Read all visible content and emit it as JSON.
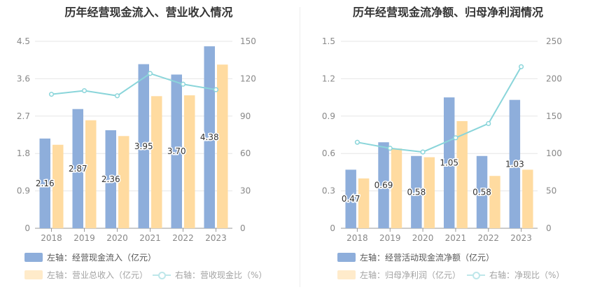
{
  "colors": {
    "bar_primary": "#8EAEDB",
    "bar_secondary": "#FFDBA0",
    "line": "#8AD5DA",
    "axis_text": "#888888",
    "grid": "#E6E6E6"
  },
  "chart_data": [
    {
      "type": "bar",
      "title": "历年经营现金流入、营业收入情况",
      "categories": [
        "2018",
        "2019",
        "2020",
        "2021",
        "2022",
        "2023"
      ],
      "left_axis": {
        "ticks": [
          "0",
          "0.9",
          "1.8",
          "2.7",
          "3.6",
          "4.5"
        ],
        "ylim": [
          0,
          4.5
        ]
      },
      "right_axis": {
        "ticks": [
          "0",
          "30",
          "60",
          "90",
          "120",
          "150"
        ],
        "ylim": [
          0,
          150
        ]
      },
      "series": [
        {
          "name": "左轴：经营现金流入（亿元）",
          "kind": "bar",
          "axis": "left",
          "values": [
            2.16,
            2.87,
            2.36,
            3.95,
            3.7,
            4.38
          ],
          "labels": [
            "2.16",
            "2.87",
            "2.36",
            "3.95",
            "3.70",
            "4.38"
          ]
        },
        {
          "name": "左轴：营业总收入（亿元）",
          "kind": "bar",
          "axis": "left",
          "values": [
            2.01,
            2.6,
            2.22,
            3.18,
            3.2,
            3.94
          ]
        },
        {
          "name": "右轴：营收现金比（%）",
          "kind": "line",
          "axis": "right",
          "values": [
            107.5,
            110.4,
            106.3,
            124.2,
            115.6,
            111.2
          ]
        }
      ]
    },
    {
      "type": "bar",
      "title": "历年经营现金流净额、归母净利润情况",
      "categories": [
        "2018",
        "2019",
        "2020",
        "2021",
        "2022",
        "2023"
      ],
      "left_axis": {
        "ticks": [
          "0",
          "0.3",
          "0.6",
          "0.9",
          "1.2",
          "1.5"
        ],
        "ylim": [
          0,
          1.5
        ]
      },
      "right_axis": {
        "ticks": [
          "0",
          "50",
          "100",
          "150",
          "200",
          "250"
        ],
        "ylim": [
          0,
          250
        ]
      },
      "series": [
        {
          "name": "左轴：经营活动现金流净额（亿元）",
          "kind": "bar",
          "axis": "left",
          "values": [
            0.47,
            0.69,
            0.58,
            1.05,
            0.58,
            1.03
          ],
          "labels": [
            "0.47",
            "0.69",
            "0.58",
            "1.05",
            "0.58",
            "1.03"
          ]
        },
        {
          "name": "左轴：归母净利润（亿元）",
          "kind": "bar",
          "axis": "left",
          "values": [
            0.4,
            0.64,
            0.57,
            0.86,
            0.42,
            0.47
          ]
        },
        {
          "name": "右轴：净现比（%）",
          "kind": "line",
          "axis": "right",
          "values": [
            115,
            107,
            102,
            121,
            140,
            216
          ]
        }
      ]
    }
  ]
}
